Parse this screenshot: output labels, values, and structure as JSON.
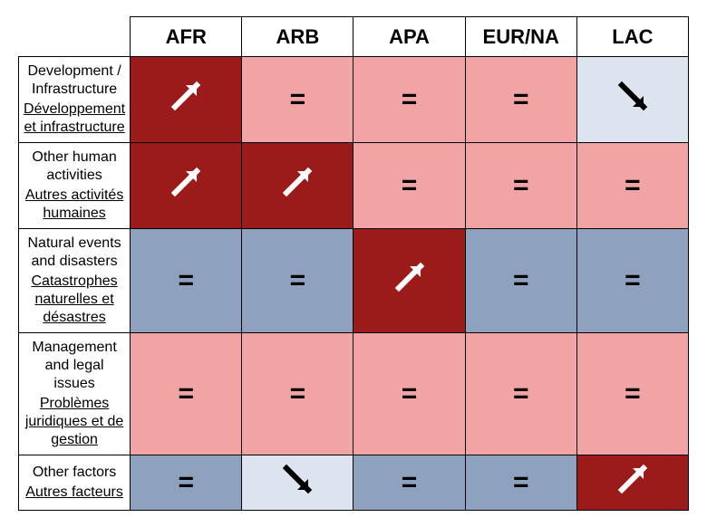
{
  "columns": [
    "AFR",
    "ARB",
    "APA",
    "EUR/NA",
    "LAC"
  ],
  "rows": [
    {
      "en": "Development / Infrastructure",
      "fr": "Développement et infrastructure"
    },
    {
      "en": "Other human activities",
      "fr": "Autres activités humaines"
    },
    {
      "en": "Natural events and disasters",
      "fr": "Catastrophes naturelles et désastres"
    },
    {
      "en": "Management and legal issues",
      "fr": "Problèmes juridiques et de gestion"
    },
    {
      "en": "Other factors",
      "fr": "Autres facteurs"
    }
  ],
  "cells": [
    [
      {
        "v": "up",
        "c": "dark_red"
      },
      {
        "v": "eq",
        "c": "light_red"
      },
      {
        "v": "eq",
        "c": "light_red"
      },
      {
        "v": "eq",
        "c": "light_red"
      },
      {
        "v": "down",
        "c": "very_light_blue"
      }
    ],
    [
      {
        "v": "up",
        "c": "dark_red"
      },
      {
        "v": "up",
        "c": "dark_red"
      },
      {
        "v": "eq",
        "c": "light_red"
      },
      {
        "v": "eq",
        "c": "light_red"
      },
      {
        "v": "eq",
        "c": "light_red"
      }
    ],
    [
      {
        "v": "eq",
        "c": "mid_blue"
      },
      {
        "v": "eq",
        "c": "mid_blue"
      },
      {
        "v": "up",
        "c": "dark_red"
      },
      {
        "v": "eq",
        "c": "mid_blue"
      },
      {
        "v": "eq",
        "c": "mid_blue"
      }
    ],
    [
      {
        "v": "eq",
        "c": "light_red"
      },
      {
        "v": "eq",
        "c": "light_red"
      },
      {
        "v": "eq",
        "c": "light_red"
      },
      {
        "v": "eq",
        "c": "light_red"
      },
      {
        "v": "eq",
        "c": "light_red"
      }
    ],
    [
      {
        "v": "eq",
        "c": "mid_blue"
      },
      {
        "v": "down",
        "c": "very_light_blue"
      },
      {
        "v": "eq",
        "c": "mid_blue"
      },
      {
        "v": "eq",
        "c": "mid_blue"
      },
      {
        "v": "up",
        "c": "dark_red"
      }
    ]
  ],
  "palette": {
    "dark_red": "#9b1b1b",
    "light_red": "#f2a3a3",
    "mid_blue": "#8ea2bf",
    "very_light_blue": "#dbe4ef"
  },
  "symbol_color": {
    "dark_red": "#ffffff",
    "light_red": "#000000",
    "mid_blue": "#000000",
    "very_light_blue": "#000000"
  },
  "symbol_glyph": {
    "up": "↗",
    "down": "↘",
    "eq": "="
  },
  "style": {
    "header_fontsize": 22,
    "rowhead_fontsize": 16,
    "cell_fontsize": 30,
    "border_color": "#000000",
    "background": "#ffffff",
    "arrow_stroke_width": 6
  }
}
